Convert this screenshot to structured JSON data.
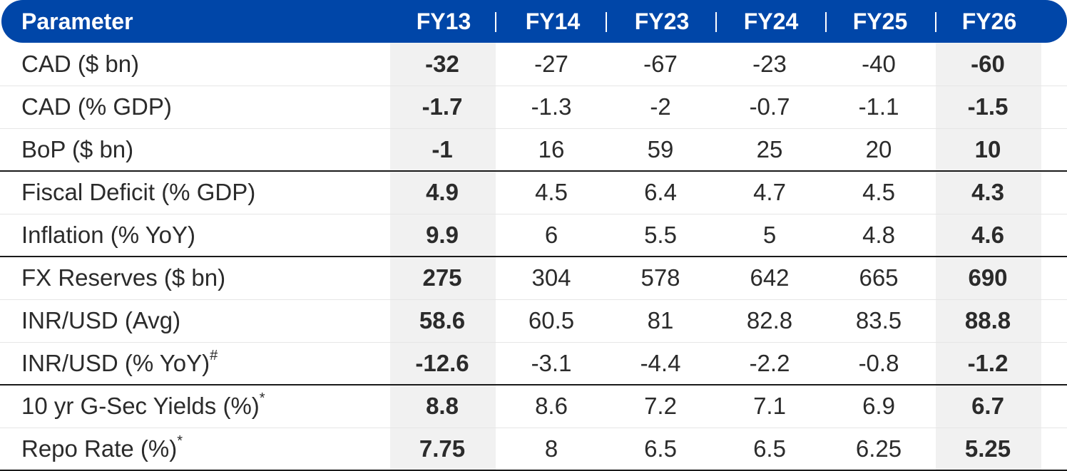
{
  "header": {
    "parameter": "Parameter",
    "years": [
      "FY13",
      "FY14",
      "FY23",
      "FY24",
      "FY25",
      "FY26"
    ]
  },
  "rows": [
    {
      "label": "CAD ($ bn)",
      "sup": "",
      "values": [
        "-32",
        "-27",
        "-67",
        "-23",
        "-40",
        "-60"
      ]
    },
    {
      "label": "CAD (% GDP)",
      "sup": "",
      "values": [
        "-1.7",
        "-1.3",
        "-2",
        "-0.7",
        "-1.1",
        "-1.5"
      ]
    },
    {
      "label": "BoP ($ bn)",
      "sup": "",
      "values": [
        "-1",
        "16",
        "59",
        "25",
        "20",
        "10"
      ]
    },
    {
      "label": "Fiscal Deficit (% GDP)",
      "sup": "",
      "values": [
        "4.9",
        "4.5",
        "6.4",
        "4.7",
        "4.5",
        "4.3"
      ]
    },
    {
      "label": "Inflation (% YoY)",
      "sup": "",
      "values": [
        "9.9",
        "6",
        "5.5",
        "5",
        "4.8",
        "4.6"
      ]
    },
    {
      "label": "FX Reserves ($ bn)",
      "sup": "",
      "values": [
        "275",
        "304",
        "578",
        "642",
        "665",
        "690"
      ]
    },
    {
      "label": "INR/USD (Avg)",
      "sup": "",
      "values": [
        "58.6",
        "60.5",
        "81",
        "82.8",
        "83.5",
        "88.8"
      ]
    },
    {
      "label": "INR/USD (% YoY)",
      "sup": "#",
      "values": [
        "-12.6",
        "-3.1",
        "-4.4",
        "-2.2",
        "-0.8",
        "-1.2"
      ]
    },
    {
      "label": "10 yr G-Sec Yields (%)",
      "sup": "*",
      "values": [
        "8.8",
        "8.6",
        "7.2",
        "7.1",
        "6.9",
        "6.7"
      ]
    },
    {
      "label": "Repo Rate (%)",
      "sup": "*",
      "values": [
        "7.75",
        "8",
        "6.5",
        "6.5",
        "6.25",
        "5.25"
      ]
    }
  ],
  "colors": {
    "header_bg": "#0046a8",
    "header_text": "#ffffff",
    "highlight_col": "#f1f1f1"
  }
}
